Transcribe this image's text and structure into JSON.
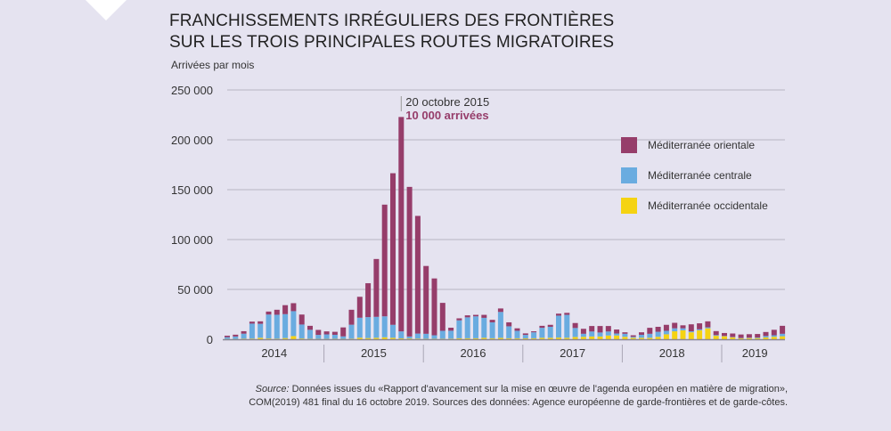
{
  "title_line1": "FRANCHISSEMENTS IRRÉGULIERS DES FRONTIÈRES",
  "title_line2": "SUR LES TROIS PRINCIPALES ROUTES MIGRATOIRES",
  "source_label": "Source:",
  "source_text1": " Données issues du «Rapport d'avancement sur la mise en œuvre de l'agenda européen en matière de migration»,",
  "source_text2": "COM(2019) 481 final du 16 octobre 2019. Sources des données: Agence européenne de garde-frontières et de garde-côtes.",
  "chart_data": {
    "type": "bar",
    "stacked": true,
    "title": "FRANCHISSEMENTS IRRÉGULIERS DES FRONTIÈRES SUR LES TROIS PRINCIPALES ROUTES MIGRATOIRES",
    "ylabel": "Arrivées par mois",
    "xlabel": "",
    "ylim": [
      0,
      250000
    ],
    "yticks": [
      0,
      50000,
      100000,
      150000,
      200000,
      250000
    ],
    "ytick_labels": [
      "0",
      "50 000",
      "100 000",
      "150 000",
      "200 000",
      "250 000"
    ],
    "grid": true,
    "legend_position": "right",
    "years": [
      {
        "label": "2014",
        "months": 12
      },
      {
        "label": "2015",
        "months": 12
      },
      {
        "label": "2016",
        "months": 12
      },
      {
        "label": "2017",
        "months": 12
      },
      {
        "label": "2018",
        "months": 12
      },
      {
        "label": "2019",
        "months": 8
      }
    ],
    "series": [
      {
        "name": "Méditerranée occidentale",
        "color": "#f5d312",
        "values": [
          300,
          300,
          600,
          700,
          1500,
          800,
          600,
          1200,
          3200,
          800,
          500,
          400,
          400,
          500,
          400,
          600,
          1600,
          1200,
          1500,
          2000,
          1500,
          900,
          800,
          700,
          500,
          500,
          500,
          600,
          1000,
          1000,
          1000,
          1500,
          1000,
          1400,
          1000,
          1000,
          900,
          1000,
          1500,
          1500,
          1700,
          1500,
          2300,
          2500,
          2800,
          2800,
          3800,
          3800,
          2500,
          1500,
          1500,
          1500,
          2500,
          5000,
          8000,
          9000,
          7000,
          9000,
          11000,
          3500,
          3000,
          2000,
          1000,
          1200,
          1200,
          1800,
          2500,
          3000
        ]
      },
      {
        "name": "Méditerranée centrale",
        "color": "#6aace0",
        "values": [
          1800,
          2500,
          5000,
          15000,
          14000,
          24000,
          24000,
          24000,
          25000,
          14000,
          9000,
          4000,
          4500,
          4000,
          2500,
          14000,
          20000,
          21000,
          21000,
          21000,
          13000,
          7000,
          2000,
          5000,
          5000,
          3500,
          8000,
          8000,
          18000,
          21000,
          22000,
          20000,
          16000,
          26000,
          12000,
          7500,
          3500,
          6000,
          10000,
          11000,
          22000,
          23000,
          9000,
          3000,
          5000,
          4000,
          4000,
          2000,
          3000,
          1000,
          3000,
          4000,
          5000,
          3500,
          3000,
          2000,
          1000,
          1000,
          1000,
          700,
          300,
          300,
          300,
          400,
          600,
          1500,
          1500,
          2500
        ]
      },
      {
        "name": "Méditerranée orientale",
        "color": "#963d6a",
        "values": [
          1500,
          1800,
          2500,
          2000,
          2500,
          3000,
          5000,
          9000,
          8000,
          10000,
          4000,
          5000,
          3000,
          3000,
          9000,
          15000,
          21000,
          34000,
          58000,
          112000,
          152000,
          215000,
          150000,
          118000,
          68000,
          57000,
          28000,
          3000,
          2000,
          2000,
          1500,
          3000,
          2500,
          3500,
          4000,
          2500,
          1500,
          1000,
          2000,
          2000,
          2000,
          2000,
          5000,
          5000,
          5500,
          6500,
          5500,
          4000,
          1500,
          1500,
          2500,
          6000,
          5000,
          6000,
          5500,
          3000,
          7000,
          6000,
          6000,
          4000,
          3000,
          3500,
          3500,
          3500,
          3500,
          4000,
          5500,
          8000
        ]
      }
    ],
    "annotation": {
      "date": "20 octobre 2015",
      "value_label": "10 000 arrivées",
      "month_index": 21
    }
  }
}
